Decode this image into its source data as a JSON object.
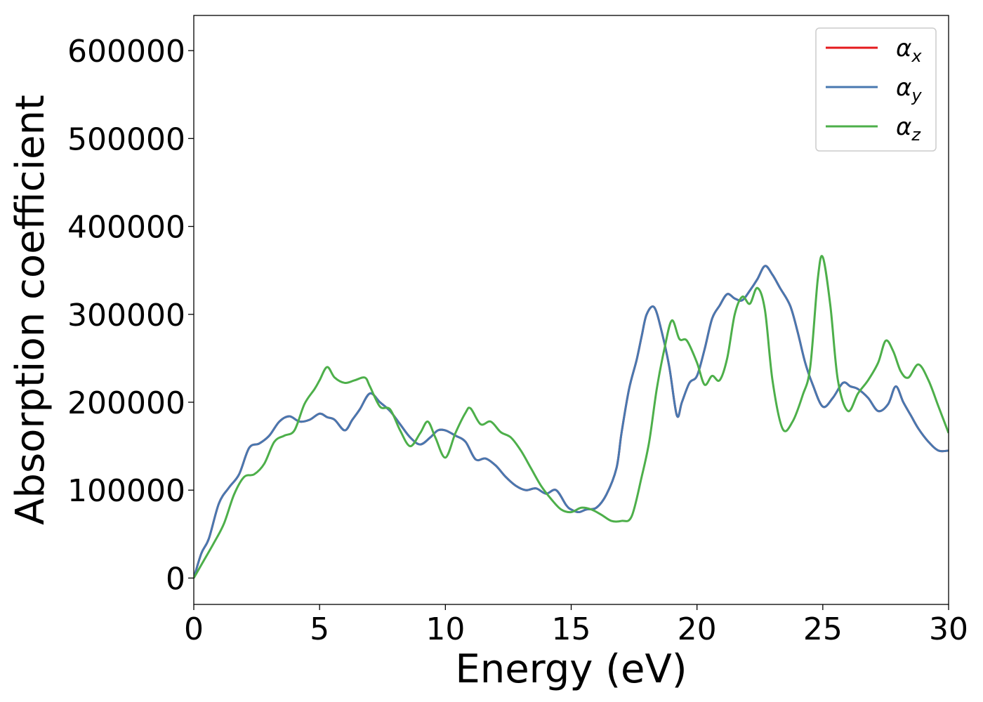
{
  "chart_data": {
    "type": "line",
    "title": "",
    "xlabel": "Energy (eV)",
    "ylabel": "Absorption coefficient",
    "xlim": [
      0,
      30
    ],
    "ylim": [
      -30000,
      640000
    ],
    "xticks": [
      0,
      5,
      10,
      15,
      20,
      25,
      30
    ],
    "xtick_labels": [
      "0",
      "5",
      "10",
      "15",
      "20",
      "25",
      "30"
    ],
    "yticks": [
      0,
      100000,
      200000,
      300000,
      400000,
      500000,
      600000
    ],
    "ytick_labels": [
      "0",
      "100000",
      "200000",
      "300000",
      "400000",
      "500000",
      "600000"
    ],
    "grid": false,
    "legend_position": "top-right",
    "series": [
      {
        "name": "αx",
        "symbol": "α",
        "subscript": "x",
        "color": "#e41a1c",
        "x": [
          0,
          0.3,
          0.6,
          1.0,
          1.4,
          1.8,
          2.2,
          2.6,
          3.0,
          3.4,
          3.8,
          4.2,
          4.6,
          5.0,
          5.3,
          5.6,
          6.0,
          6.3,
          6.6,
          7.0,
          7.4,
          7.8,
          8.2,
          8.6,
          9.0,
          9.4,
          9.7,
          10.0,
          10.4,
          10.8,
          11.2,
          11.6,
          12.0,
          12.4,
          12.8,
          13.2,
          13.6,
          14.0,
          14.4,
          14.8,
          15.0,
          15.3,
          15.6,
          16.0,
          16.4,
          16.8,
          17.0,
          17.3,
          17.6,
          17.8,
          18.0,
          18.3,
          18.6,
          18.9,
          19.2,
          19.4,
          19.7,
          20.0,
          20.3,
          20.6,
          20.9,
          21.2,
          21.5,
          21.8,
          22.1,
          22.4,
          22.7,
          23.0,
          23.3,
          23.7,
          24.0,
          24.3,
          24.6,
          25.0,
          25.4,
          25.8,
          26.1,
          26.4,
          26.8,
          27.2,
          27.6,
          27.9,
          28.2,
          28.5,
          28.8,
          29.2,
          29.6,
          30.0
        ],
        "y": [
          0,
          28000,
          45000,
          85000,
          103000,
          118000,
          148000,
          153000,
          162000,
          178000,
          184000,
          178000,
          180000,
          187000,
          183000,
          180000,
          168000,
          180000,
          192000,
          210000,
          200000,
          190000,
          175000,
          160000,
          152000,
          160000,
          168000,
          168000,
          162000,
          155000,
          135000,
          136000,
          128000,
          115000,
          105000,
          100000,
          102000,
          96000,
          100000,
          83000,
          78000,
          75000,
          78000,
          80000,
          95000,
          125000,
          165000,
          215000,
          248000,
          275000,
          300000,
          308000,
          280000,
          240000,
          185000,
          200000,
          222000,
          230000,
          260000,
          295000,
          310000,
          323000,
          318000,
          316000,
          327000,
          340000,
          355000,
          345000,
          330000,
          310000,
          280000,
          245000,
          220000,
          195000,
          205000,
          222000,
          218000,
          215000,
          205000,
          190000,
          198000,
          218000,
          200000,
          185000,
          170000,
          155000,
          145000,
          145000
        ]
      },
      {
        "name": "αy",
        "symbol": "α",
        "subscript": "y",
        "color": "#4878b0",
        "x": [
          0,
          0.3,
          0.6,
          1.0,
          1.4,
          1.8,
          2.2,
          2.6,
          3.0,
          3.4,
          3.8,
          4.2,
          4.6,
          5.0,
          5.3,
          5.6,
          6.0,
          6.3,
          6.6,
          7.0,
          7.4,
          7.8,
          8.2,
          8.6,
          9.0,
          9.4,
          9.7,
          10.0,
          10.4,
          10.8,
          11.2,
          11.6,
          12.0,
          12.4,
          12.8,
          13.2,
          13.6,
          14.0,
          14.4,
          14.8,
          15.0,
          15.3,
          15.6,
          16.0,
          16.4,
          16.8,
          17.0,
          17.3,
          17.6,
          17.8,
          18.0,
          18.3,
          18.6,
          18.9,
          19.2,
          19.4,
          19.7,
          20.0,
          20.3,
          20.6,
          20.9,
          21.2,
          21.5,
          21.8,
          22.1,
          22.4,
          22.7,
          23.0,
          23.3,
          23.7,
          24.0,
          24.3,
          24.6,
          25.0,
          25.4,
          25.8,
          26.1,
          26.4,
          26.8,
          27.2,
          27.6,
          27.9,
          28.2,
          28.5,
          28.8,
          29.2,
          29.6,
          30.0
        ],
        "y": [
          0,
          28000,
          45000,
          85000,
          103000,
          118000,
          148000,
          153000,
          162000,
          178000,
          184000,
          178000,
          180000,
          187000,
          183000,
          180000,
          168000,
          180000,
          192000,
          210000,
          200000,
          190000,
          175000,
          160000,
          152000,
          160000,
          168000,
          168000,
          162000,
          155000,
          135000,
          136000,
          128000,
          115000,
          105000,
          100000,
          102000,
          96000,
          100000,
          83000,
          78000,
          75000,
          78000,
          80000,
          95000,
          125000,
          165000,
          215000,
          248000,
          275000,
          300000,
          308000,
          280000,
          240000,
          185000,
          200000,
          222000,
          230000,
          260000,
          295000,
          310000,
          323000,
          318000,
          316000,
          327000,
          340000,
          355000,
          345000,
          330000,
          310000,
          280000,
          245000,
          220000,
          195000,
          205000,
          222000,
          218000,
          215000,
          205000,
          190000,
          198000,
          218000,
          200000,
          185000,
          170000,
          155000,
          145000,
          145000
        ]
      },
      {
        "name": "αz",
        "symbol": "α",
        "subscript": "z",
        "color": "#4daf4a",
        "x": [
          0,
          0.4,
          0.8,
          1.2,
          1.6,
          2.0,
          2.4,
          2.8,
          3.2,
          3.6,
          4.0,
          4.4,
          4.8,
          5.0,
          5.3,
          5.6,
          6.0,
          6.4,
          6.8,
          7.0,
          7.4,
          7.8,
          8.2,
          8.6,
          9.0,
          9.3,
          9.6,
          10.0,
          10.4,
          10.8,
          11.0,
          11.4,
          11.8,
          12.2,
          12.6,
          13.0,
          13.4,
          13.8,
          14.2,
          14.6,
          15.0,
          15.4,
          15.8,
          16.2,
          16.6,
          17.0,
          17.4,
          17.8,
          18.1,
          18.4,
          18.7,
          19.0,
          19.3,
          19.6,
          20.0,
          20.3,
          20.6,
          20.9,
          21.2,
          21.5,
          21.8,
          22.1,
          22.4,
          22.7,
          23.0,
          23.4,
          23.8,
          24.2,
          24.5,
          24.8,
          25.0,
          25.3,
          25.6,
          26.0,
          26.4,
          26.8,
          27.2,
          27.5,
          27.8,
          28.1,
          28.4,
          28.8,
          29.2,
          29.6,
          30.0
        ],
        "y": [
          0,
          20000,
          40000,
          62000,
          95000,
          115000,
          118000,
          130000,
          155000,
          162000,
          168000,
          198000,
          215000,
          225000,
          240000,
          228000,
          222000,
          225000,
          228000,
          218000,
          195000,
          192000,
          168000,
          150000,
          165000,
          178000,
          160000,
          137000,
          165000,
          188000,
          193000,
          175000,
          178000,
          166000,
          160000,
          145000,
          125000,
          105000,
          90000,
          78000,
          75000,
          80000,
          78000,
          72000,
          65000,
          65000,
          70000,
          115000,
          155000,
          215000,
          260000,
          293000,
          272000,
          270000,
          245000,
          220000,
          230000,
          225000,
          250000,
          300000,
          320000,
          312000,
          330000,
          305000,
          225000,
          170000,
          178000,
          208000,
          240000,
          340000,
          365000,
          310000,
          225000,
          190000,
          210000,
          225000,
          245000,
          270000,
          258000,
          235000,
          228000,
          243000,
          225000,
          195000,
          165000
        ]
      }
    ]
  }
}
